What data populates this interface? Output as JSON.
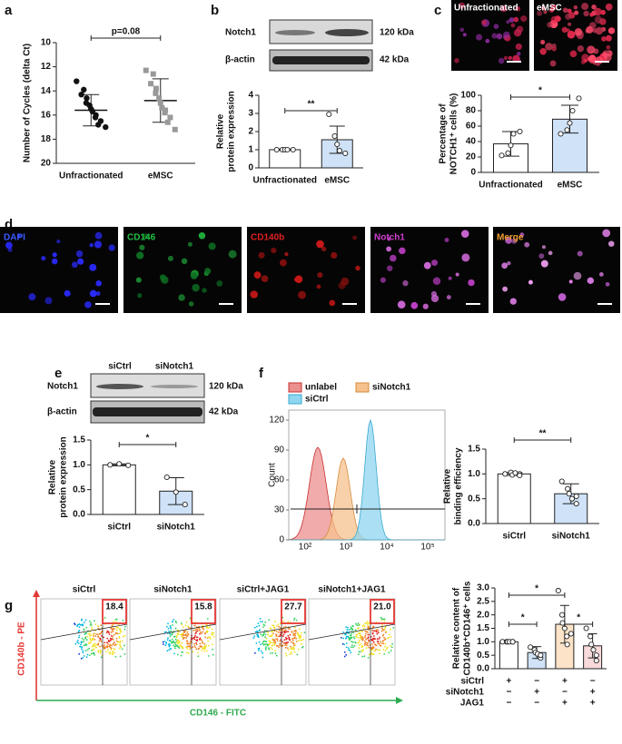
{
  "panels": [
    "a",
    "b",
    "c",
    "d",
    "e",
    "f",
    "g"
  ],
  "blot_b": {
    "rows": [
      "Notch1",
      "β-actin"
    ],
    "sizes": [
      "120 kDa",
      "42 kDa"
    ]
  },
  "images_c": [
    "Unfractionated",
    "eMSC"
  ],
  "images_d": [
    "DAPI",
    "CD146",
    "CD140b",
    "Notch1",
    "Merge"
  ],
  "blot_e": {
    "headers": [
      "siCtrl",
      "siNotch1"
    ],
    "rows": [
      "Notch1",
      "β-actin"
    ],
    "sizes": [
      "120 kDa",
      "42 kDa"
    ]
  },
  "flow_f": {
    "legend": [
      "unlabel",
      "siNotch1",
      "siCtrl"
    ],
    "ylabel": "Count",
    "ylim": [
      0,
      130
    ],
    "yticks": [
      0,
      30,
      60,
      90,
      120
    ],
    "xtick_labels": [
      "10²",
      "10³",
      "10⁴",
      "10⁵"
    ]
  },
  "flow_g": {
    "ylabel": "CD140b - PE",
    "xlabel": "CD146 - FITC",
    "plots": [
      {
        "title": "siCtrl",
        "value": "18.4"
      },
      {
        "title": "siNotch1",
        "value": "15.8"
      },
      {
        "title": "siCtrl+JAG1",
        "value": "27.7"
      },
      {
        "title": "siNotch1+JAG1",
        "value": "21.0"
      }
    ]
  },
  "chart_data": [
    {
      "type": "dot",
      "ylabel": [
        "Number of Cycles (delta Ct)"
      ],
      "categories": [
        "Unfractionated",
        "eMSC"
      ],
      "values": [
        15.6,
        14.8
      ],
      "errors": [
        1.3,
        1.8
      ],
      "points": [
        [
          13.2,
          13.9,
          14.3,
          14.6,
          15.0,
          15.2,
          15.5,
          15.7,
          16.0,
          16.2,
          16.5,
          16.8,
          17.0
        ],
        [
          12.3,
          12.6,
          13.4,
          13.8,
          14.2,
          14.6,
          15.0,
          15.4,
          15.6,
          15.8,
          16.2,
          16.6,
          17.2
        ]
      ],
      "colors": [
        "#111111",
        "#999999"
      ],
      "markers": [
        "circle",
        "square"
      ],
      "ylim": [
        10,
        20
      ],
      "inverted": true,
      "yticks": [
        10,
        12,
        14,
        16,
        18,
        20
      ],
      "annotations": [
        "p=0.08"
      ]
    },
    {
      "type": "bar",
      "ylabel": [
        "Relative",
        "protein expression"
      ],
      "categories": [
        "Unfractionated",
        "eMSC"
      ],
      "values": [
        1.0,
        1.55
      ],
      "errors": [
        0.03,
        0.75
      ],
      "points": [
        [
          1,
          1,
          1,
          1,
          1
        ],
        [
          2.95,
          1.75,
          1.3,
          0.95,
          0.8
        ]
      ],
      "colors": [
        "#ffffff",
        "#cfe2f7"
      ],
      "ylim": [
        0,
        4
      ],
      "yticks": [
        0,
        1,
        2,
        3,
        4
      ],
      "annotations": [
        "**"
      ]
    },
    {
      "type": "bar",
      "ylabel": [
        "Percentage of",
        "NOTCH1⁺ cells (%)"
      ],
      "categories": [
        "Unfractionated",
        "eMSC"
      ],
      "values": [
        37,
        69
      ],
      "errors": [
        16,
        18
      ],
      "points": [
        [
          22,
          25,
          35,
          50,
          53
        ],
        [
          50,
          55,
          64,
          80,
          96
        ]
      ],
      "colors": [
        "#ffffff",
        "#cfe2f7"
      ],
      "ylim": [
        0,
        100
      ],
      "yticks": [
        0,
        20,
        40,
        60,
        80,
        100
      ],
      "annotations": [
        "*"
      ]
    },
    {
      "type": "bar",
      "ylabel": [
        "Relative",
        "protein expression"
      ],
      "categories": [
        "siCtrl",
        "siNotch1"
      ],
      "values": [
        1.0,
        0.47
      ],
      "errors": [
        0.02,
        0.27
      ],
      "points": [
        [
          1.0,
          1.02,
          0.99
        ],
        [
          0.75,
          0.45,
          0.2
        ]
      ],
      "colors": [
        "#ffffff",
        "#cfe2f7"
      ],
      "ylim": [
        0,
        1.5
      ],
      "yticks": [
        {
          "value": 0,
          "label": "0.0"
        },
        {
          "value": 0.5,
          "label": "0.5"
        },
        {
          "value": 1,
          "label": "1.0"
        },
        {
          "value": 1.5,
          "label": "1.5"
        }
      ],
      "annotations": [
        "*"
      ]
    },
    {
      "type": "bar",
      "ylabel": [
        "Relative",
        "binding efficiency"
      ],
      "categories": [
        "siCtrl",
        "siNotch1"
      ],
      "values": [
        1.0,
        0.6
      ],
      "errors": [
        0.03,
        0.2
      ],
      "points": [
        [
          1.0,
          1.03,
          0.98,
          1.02,
          1.0,
          0.97
        ],
        [
          0.85,
          0.7,
          0.6,
          0.5,
          0.55,
          0.4
        ]
      ],
      "colors": [
        "#ffffff",
        "#cfe2f7"
      ],
      "ylim": [
        0,
        1.5
      ],
      "yticks": [
        {
          "value": 0,
          "label": "0.0"
        },
        {
          "value": 0.5,
          "label": "0.5"
        },
        {
          "value": 1,
          "label": "1.0"
        },
        {
          "value": 1.5,
          "label": "1.5"
        }
      ],
      "annotations": [
        "**"
      ]
    },
    {
      "type": "bar",
      "ylabel": [
        "Relative content of",
        "CD140b⁺CD146⁺ cells"
      ],
      "values": [
        1.0,
        0.6,
        1.65,
        0.85
      ],
      "errors": [
        0.03,
        0.22,
        0.7,
        0.45
      ],
      "points": [
        [
          1,
          1,
          1,
          1,
          1,
          1
        ],
        [
          0.8,
          0.7,
          0.6,
          0.55,
          0.4,
          0.5
        ],
        [
          2.9,
          2.0,
          1.7,
          1.5,
          1.2,
          0.9,
          1.3
        ],
        [
          1.5,
          1.2,
          0.9,
          0.7,
          0.5,
          0.3
        ]
      ],
      "colors": [
        "#ffffff",
        "#cfe2f7",
        "#fde3c8",
        "#f8dada"
      ],
      "ylim": [
        0,
        3
      ],
      "yticks": [
        {
          "value": 0,
          "label": "0.0"
        },
        {
          "value": 0.5,
          "label": "0.5"
        },
        {
          "value": 1,
          "label": "1.0"
        },
        {
          "value": 1.5,
          "label": "1.5"
        },
        {
          "value": 2,
          "label": "2.0"
        },
        {
          "value": 2.5,
          "label": "2.5"
        },
        {
          "value": 3,
          "label": "3.0"
        }
      ],
      "annotations": [
        "*",
        "*",
        "*"
      ],
      "conditions": [
        {
          "label": "siCtrl",
          "marks": [
            "+",
            "−",
            "+",
            "−"
          ]
        },
        {
          "label": "siNotch1",
          "marks": [
            "−",
            "+",
            "−",
            "+"
          ]
        },
        {
          "label": "JAG1",
          "marks": [
            "−",
            "−",
            "+",
            "+"
          ]
        }
      ]
    }
  ]
}
